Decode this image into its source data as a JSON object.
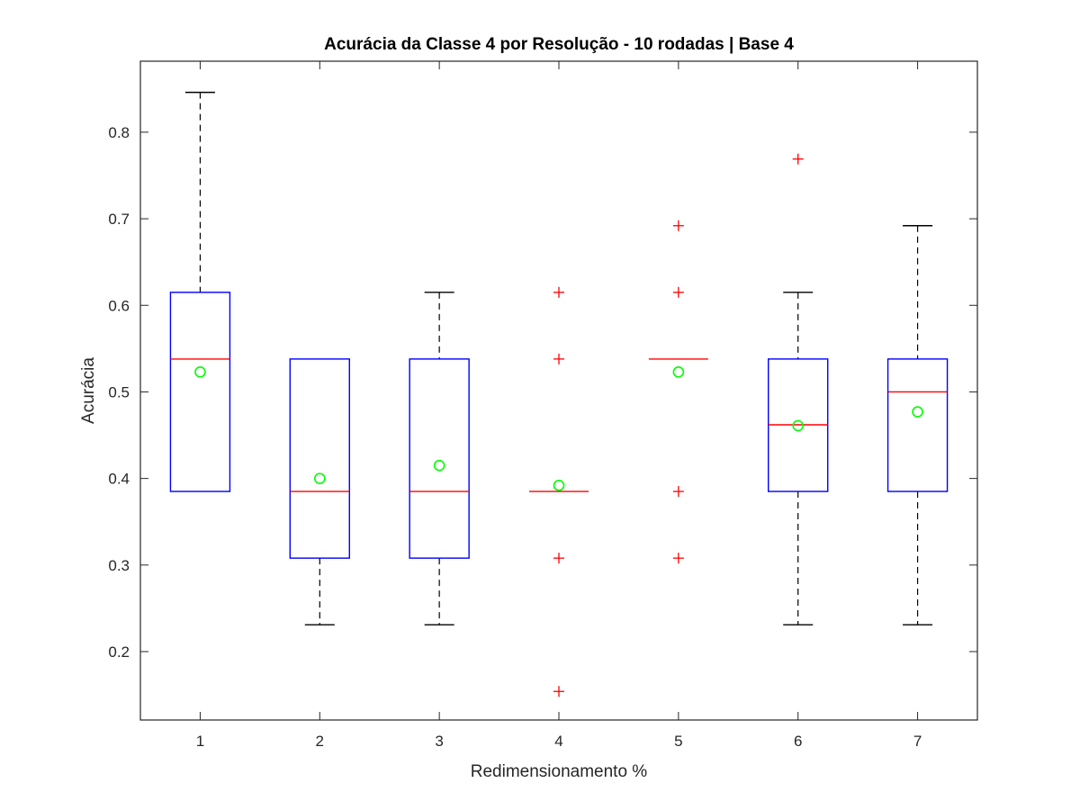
{
  "chart_data": {
    "type": "boxplot",
    "title": "Acurácia da Classe 4 por Resolução - 10 rodadas | Base 4",
    "xlabel": "Redimensionamento %",
    "ylabel": "Acurácia",
    "categories": [
      "1",
      "2",
      "3",
      "4",
      "5",
      "6",
      "7"
    ],
    "ylim": [
      0.121,
      0.882
    ],
    "yticks": [
      0.2,
      0.3,
      0.4,
      0.5,
      0.6,
      0.7,
      0.8
    ],
    "ytick_labels": [
      "0.2",
      "0.3",
      "0.4",
      "0.5",
      "0.6",
      "0.7",
      "0.8"
    ],
    "grid": false,
    "colors": {
      "box": "#0000ff",
      "median": "#ff0000",
      "whisker": "#000000",
      "outlier": "#ff0000",
      "mean": "#00ff00",
      "axes": "#262626"
    },
    "boxes": [
      {
        "category": "1",
        "whisker_low": 0.385,
        "q1": 0.385,
        "median": 0.538,
        "q3": 0.615,
        "whisker_high": 0.846,
        "mean": 0.523,
        "outliers": []
      },
      {
        "category": "2",
        "whisker_low": 0.231,
        "q1": 0.308,
        "median": 0.385,
        "q3": 0.538,
        "whisker_high": 0.538,
        "mean": 0.4,
        "outliers": []
      },
      {
        "category": "3",
        "whisker_low": 0.231,
        "q1": 0.308,
        "median": 0.385,
        "q3": 0.538,
        "whisker_high": 0.615,
        "mean": 0.415,
        "outliers": []
      },
      {
        "category": "4",
        "whisker_low": 0.385,
        "q1": 0.385,
        "median": 0.385,
        "q3": 0.385,
        "whisker_high": 0.385,
        "mean": 0.392,
        "outliers": [
          0.615,
          0.538,
          0.308,
          0.154
        ]
      },
      {
        "category": "5",
        "whisker_low": 0.538,
        "q1": 0.538,
        "median": 0.538,
        "q3": 0.538,
        "whisker_high": 0.538,
        "mean": 0.523,
        "outliers": [
          0.692,
          0.615,
          0.385,
          0.308
        ]
      },
      {
        "category": "6",
        "whisker_low": 0.231,
        "q1": 0.385,
        "median": 0.462,
        "q3": 0.538,
        "whisker_high": 0.615,
        "mean": 0.461,
        "outliers": [
          0.769
        ]
      },
      {
        "category": "7",
        "whisker_low": 0.231,
        "q1": 0.385,
        "median": 0.5,
        "q3": 0.538,
        "whisker_high": 0.692,
        "mean": 0.477,
        "outliers": []
      }
    ]
  }
}
